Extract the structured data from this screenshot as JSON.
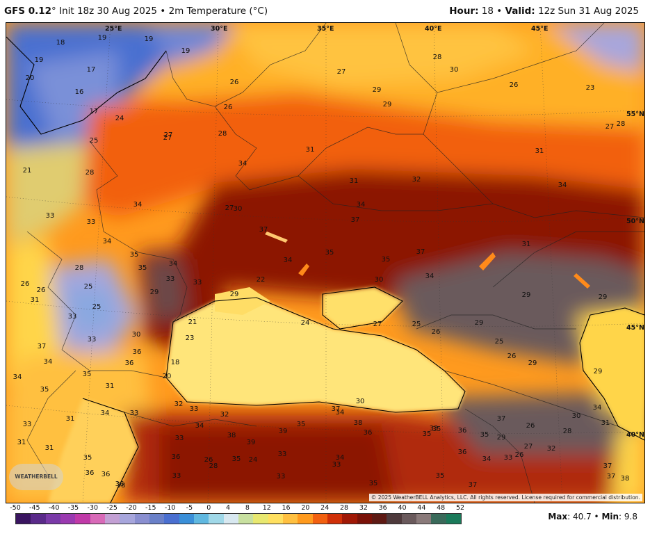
{
  "header": {
    "model": "GFS 0.12",
    "degree": "°",
    "init": "Init 18z 30 Aug 2025",
    "bullet": "•",
    "field": "2m Temperature (°C)",
    "hour_label": "Hour:",
    "hour_value": "18",
    "valid_label": "Valid:",
    "valid_value": "12z Sun 31 Aug 2025"
  },
  "colors": {
    "cold_blue": "#4a6fd0",
    "lavender": "#a7a6dc",
    "yellow": "#ffd54a",
    "orange": "#ff9a1e",
    "deep_orange": "#f2600a",
    "dark_red": "#8c1606",
    "maroon": "#5e1a14",
    "gray_hot": "#6a5a5c",
    "sea_yellow": "#ffe57a"
  },
  "lon_labels": [
    "25°E",
    "30°E",
    "35°E",
    "40°E",
    "45°E"
  ],
  "lat_labels": [
    "55°N",
    "50°N",
    "45°N",
    "40°N"
  ],
  "temps": [
    "18",
    "19",
    "19",
    "19",
    "19",
    "20",
    "17",
    "16",
    "17",
    "24",
    "25",
    "21",
    "28",
    "27",
    "27",
    "28",
    "26",
    "27",
    "26",
    "29",
    "29",
    "28",
    "30",
    "26",
    "23",
    "27",
    "28",
    "31",
    "31",
    "34",
    "34",
    "33",
    "33",
    "34",
    "31",
    "32",
    "34",
    "34",
    "35",
    "35",
    "34",
    "33",
    "33",
    "29",
    "30",
    "27",
    "37",
    "37",
    "34",
    "35",
    "35",
    "37",
    "34",
    "31",
    "30",
    "29",
    "29",
    "29",
    "22",
    "21",
    "23",
    "18",
    "20",
    "24",
    "27",
    "25",
    "26",
    "29",
    "25",
    "26",
    "29",
    "29",
    "26",
    "26",
    "31",
    "28",
    "25",
    "25",
    "33",
    "33",
    "30",
    "36",
    "36",
    "37",
    "35",
    "34",
    "34",
    "35",
    "31",
    "34",
    "33",
    "31",
    "33",
    "31",
    "31",
    "35",
    "36",
    "36",
    "36",
    "38",
    "32",
    "33",
    "32",
    "34",
    "33",
    "38",
    "39",
    "39",
    "35",
    "37",
    "34",
    "30",
    "38",
    "36",
    "35",
    "36",
    "33",
    "35",
    "29",
    "27",
    "26",
    "37",
    "36",
    "34",
    "33",
    "32",
    "30",
    "34",
    "28",
    "26",
    "31",
    "37",
    "37",
    "38",
    "36",
    "33",
    "26",
    "28",
    "35",
    "24",
    "33",
    "33",
    "33",
    "34",
    "35",
    "34",
    "35",
    "37",
    "35"
  ],
  "copyright": "© 2025 WeatherBELL Analytics, LLC. All rights reserved. License required for commercial distribution.",
  "logo": "WEATHERBELL",
  "scale": {
    "ticks": [
      "-50",
      "-45",
      "-40",
      "-35",
      "-30",
      "-25",
      "-20",
      "-15",
      "-10",
      "-5",
      "0",
      "4",
      "8",
      "12",
      "16",
      "20",
      "24",
      "28",
      "32",
      "36",
      "40",
      "44",
      "48",
      "52"
    ],
    "colors": [
      "#3a1560",
      "#5a2a8a",
      "#7a3aa8",
      "#9a3ab0",
      "#c03aa8",
      "#d86ab8",
      "#c3a0d4",
      "#a7a6dc",
      "#8a8fd0",
      "#6a80c8",
      "#4a6fd0",
      "#3a8fd8",
      "#60b8e0",
      "#a0d8e8",
      "#d8e8f0",
      "#c8e0a0",
      "#e8e870",
      "#ffe060",
      "#ffc040",
      "#ff9a1e",
      "#f26010",
      "#d03008",
      "#a01806",
      "#7a1208",
      "#5e1a14",
      "#4e3a3c",
      "#6a5a5c",
      "#8a7a7a",
      "#3a6a5a",
      "#1a7a5a"
    ]
  },
  "stats": {
    "max_label": "Max",
    "max_value": ": 40.7",
    "sep": " • ",
    "min_label": "Min",
    "min_value": ": 9.8"
  }
}
